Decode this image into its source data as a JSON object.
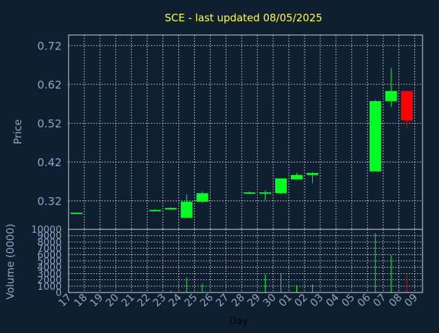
{
  "colors": {
    "background": "#0f1f31",
    "grid": "#d6dde6",
    "axis_text": "#8fa6c4",
    "title": "#ffff33",
    "up": "#00ff22",
    "down": "#ff0000",
    "tick_label": "#8fa6c4"
  },
  "chart_data": {
    "type": "candlestick",
    "title": "SCE - last updated 08/05/2025",
    "xlabel": "Day",
    "price_panel": {
      "ylabel": "Price",
      "yticks": [
        "0.72",
        "0.62",
        "0.52",
        "0.42",
        "0.32"
      ],
      "ylim": [
        0.247,
        0.747
      ],
      "grid": true
    },
    "volume_panel": {
      "ylabel": "Volume (0000)",
      "yticks": [
        "10000",
        "9000",
        "8000",
        "7000",
        "6000",
        "5000",
        "4000",
        "3000",
        "2000",
        "1000",
        "0"
      ],
      "ylim": [
        0,
        10000
      ],
      "grid": true
    },
    "x_ticks": [
      "17",
      "18",
      "19",
      "20",
      "21",
      "22",
      "23",
      "24",
      "25",
      "26",
      "27",
      "28",
      "29",
      "30",
      "01",
      "02",
      "03",
      "04",
      "05",
      "06",
      "07",
      "08",
      "09"
    ],
    "candles": [
      {
        "day": "17",
        "open": 0.288,
        "close": 0.29,
        "high": 0.29,
        "low": 0.288,
        "volume": 0
      },
      {
        "day": "22",
        "open": 0.295,
        "close": 0.297,
        "high": 0.299,
        "low": 0.293,
        "volume": 0
      },
      {
        "day": "23",
        "open": 0.3,
        "close": 0.302,
        "high": 0.304,
        "low": 0.298,
        "volume": 300
      },
      {
        "day": "24",
        "open": 0.277,
        "close": 0.318,
        "high": 0.337,
        "low": 0.277,
        "volume": 2400
      },
      {
        "day": "25",
        "open": 0.318,
        "close": 0.34,
        "high": 0.345,
        "low": 0.315,
        "volume": 1400
      },
      {
        "day": "28",
        "open": 0.34,
        "close": 0.342,
        "high": 0.345,
        "low": 0.338,
        "volume": 0
      },
      {
        "day": "29",
        "open": 0.34,
        "close": 0.342,
        "high": 0.347,
        "low": 0.322,
        "volume": 2900
      },
      {
        "day": "30",
        "open": 0.34,
        "close": 0.378,
        "high": 0.378,
        "low": 0.338,
        "volume": 3000
      },
      {
        "day": "01",
        "open": 0.376,
        "close": 0.387,
        "high": 0.392,
        "low": 0.376,
        "volume": 1200
      },
      {
        "day": "02",
        "open": 0.387,
        "close": 0.392,
        "high": 0.394,
        "low": 0.366,
        "volume": 1300
      },
      {
        "day": "06",
        "open": 0.396,
        "close": 0.577,
        "high": 0.58,
        "low": 0.396,
        "volume": 9400
      },
      {
        "day": "07",
        "open": 0.577,
        "close": 0.603,
        "high": 0.662,
        "low": 0.562,
        "volume": 5900
      },
      {
        "day": "08",
        "open": 0.603,
        "close": 0.528,
        "high": 0.603,
        "low": 0.508,
        "volume": 2900
      }
    ]
  }
}
